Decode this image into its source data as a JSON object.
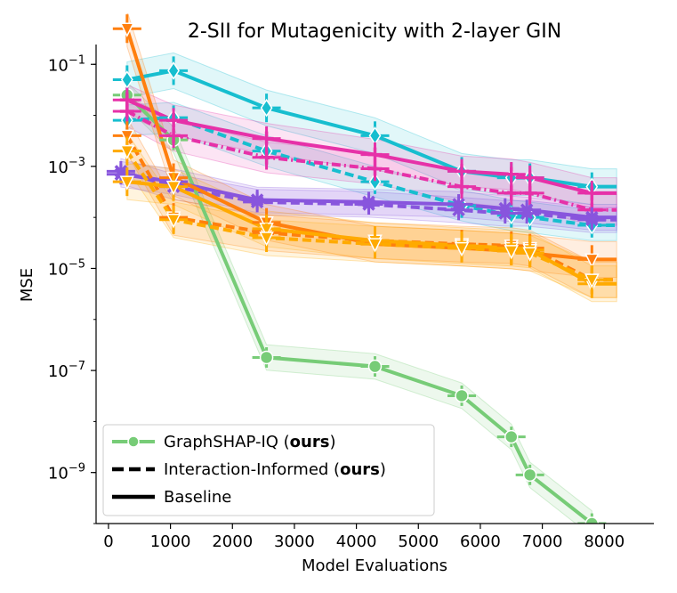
{
  "chart_data": {
    "type": "line",
    "title": "2-SII for Mutagenicity with 2-layer GIN",
    "xlabel": "Model Evaluations",
    "ylabel": "MSE",
    "yscale": "log",
    "xlim": [
      -200,
      8800
    ],
    "ylim": [
      1e-10,
      0.2
    ],
    "xticks": [
      0,
      1000,
      2000,
      3000,
      4000,
      5000,
      6000,
      7000,
      8000
    ],
    "xtick_labels": [
      "0",
      "1000",
      "2000",
      "3000",
      "4000",
      "5000",
      "6000",
      "7000",
      "8000"
    ],
    "yticks": [
      1e-09,
      1e-07,
      1e-05,
      0.001,
      0.1
    ],
    "ytick_labels": [
      {
        "base": "10",
        "exp": "−9"
      },
      {
        "base": "10",
        "exp": "−7"
      },
      {
        "base": "10",
        "exp": "−5"
      },
      {
        "base": "10",
        "exp": "−3"
      },
      {
        "base": "10",
        "exp": "−1"
      }
    ],
    "legend": {
      "position": "lower-left",
      "entries": [
        {
          "label": "GraphSHAP-IQ (",
          "bold": "ours",
          "tail": ")",
          "style": "green-marker"
        },
        {
          "label": "Interaction-Informed (",
          "bold": "ours",
          "tail": ")",
          "style": "dashed"
        },
        {
          "label": "Baseline",
          "bold": "",
          "tail": "",
          "style": "solid"
        }
      ]
    },
    "series": [
      {
        "name": "GraphSHAP-IQ",
        "color": "#77cc77",
        "dash": "solid",
        "marker": "circle",
        "band": 0.25,
        "x": [
          300,
          1050,
          2550,
          4300,
          5700,
          6500,
          6800,
          7800
        ],
        "y": [
          0.025,
          0.0033,
          1.8e-07,
          1.2e-07,
          3.2e-08,
          5e-09,
          9e-10,
          1e-10
        ]
      },
      {
        "name": "Baseline (cyan)",
        "color": "#17becf",
        "dash": "solid",
        "marker": "diamond",
        "band": 0.35,
        "x": [
          300,
          1050,
          2550,
          4300,
          5700,
          6500,
          6800,
          7800,
          8200
        ],
        "y": [
          0.05,
          0.075,
          0.014,
          0.004,
          0.0008,
          0.0006,
          0.0006,
          0.0004,
          0.0004
        ]
      },
      {
        "name": "Interaction-Informed (cyan)",
        "color": "#17becf",
        "dash": "dashed",
        "marker": "diamond",
        "band": 0.3,
        "x": [
          300,
          1050,
          2550,
          4300,
          5700,
          6500,
          6800,
          7800,
          8200
        ],
        "y": [
          0.008,
          0.009,
          0.002,
          0.0005,
          0.00017,
          0.00011,
          0.0001,
          7e-05,
          7e-05
        ]
      },
      {
        "name": "Baseline (magenta)",
        "color": "#e631a8",
        "dash": "solid",
        "marker": "plus",
        "band": 0.3,
        "x": [
          300,
          1050,
          2550,
          4300,
          5700,
          6500,
          6800,
          7800,
          8200
        ],
        "y": [
          0.02,
          0.008,
          0.0035,
          0.0017,
          0.0008,
          0.0007,
          0.0006,
          0.0003,
          0.0003
        ]
      },
      {
        "name": "Interaction-Informed (magenta)",
        "color": "#e631a8",
        "dash": "dashdot",
        "marker": "plus",
        "band": 0.3,
        "x": [
          300,
          1050,
          2550,
          4300,
          5700,
          6500,
          6800,
          7800,
          8200
        ],
        "y": [
          0.012,
          0.004,
          0.0015,
          0.0009,
          0.0004,
          0.0003,
          0.0003,
          0.00014,
          0.00014
        ]
      },
      {
        "name": "Baseline (purple)",
        "color": "#8855dd",
        "dash": "solid",
        "marker": "x",
        "band": 0.25,
        "x": [
          200,
          1050,
          2400,
          4200,
          5650,
          6400,
          6750,
          7800,
          8200
        ],
        "y": [
          0.0007,
          0.0005,
          0.00022,
          0.0002,
          0.00018,
          0.00015,
          0.00014,
          0.0001,
          0.0001
        ]
      },
      {
        "name": "Interaction-Informed (purple)",
        "color": "#8855dd",
        "dash": "dashed",
        "marker": "x",
        "band": 0.25,
        "x": [
          200,
          1050,
          2400,
          4200,
          5650,
          6400,
          6750,
          7800,
          8200
        ],
        "y": [
          0.0008,
          0.0004,
          0.0002,
          0.00018,
          0.00014,
          0.00012,
          0.00012,
          9e-05,
          9e-05
        ]
      },
      {
        "name": "Baseline (orange)",
        "color": "#ff7f0e",
        "dash": "solid",
        "marker": "triangle",
        "band": 0.35,
        "x": [
          300,
          1050,
          2550,
          4300,
          5700,
          6500,
          6800,
          7800,
          8200
        ],
        "y": [
          0.5,
          0.0006,
          8e-05,
          3e-05,
          2.5e-05,
          2.2e-05,
          2e-05,
          1.5e-05,
          1.5e-05
        ]
      },
      {
        "name": "Interaction-Informed (orange)",
        "color": "#ff7f0e",
        "dash": "dashed",
        "marker": "triangle",
        "band": 0.35,
        "x": [
          300,
          1050,
          2550,
          4300,
          5700,
          6500,
          6800,
          7800,
          8200
        ],
        "y": [
          0.004,
          0.0001,
          5e-05,
          3.5e-05,
          3e-05,
          2.8e-05,
          2.5e-05,
          6e-06,
          6e-06
        ]
      },
      {
        "name": "Baseline (amber)",
        "color": "#ffaa00",
        "dash": "solid",
        "marker": "triangle",
        "band": 0.35,
        "x": [
          300,
          1050,
          2550,
          4300,
          5700,
          6500,
          6800,
          7800,
          8200
        ],
        "y": [
          0.0005,
          0.0004,
          6e-05,
          3.5e-05,
          2.8e-05,
          2.5e-05,
          2.3e-05,
          5e-06,
          5e-06
        ]
      },
      {
        "name": "Interaction-Informed (amber)",
        "color": "#ffaa00",
        "dash": "dashed",
        "marker": "triangle",
        "band": 0.35,
        "x": [
          300,
          1050,
          2550,
          4300,
          5700,
          6500,
          6800,
          7800,
          8200
        ],
        "y": [
          0.002,
          9e-05,
          4e-05,
          3e-05,
          2.5e-05,
          2.2e-05,
          2e-05,
          6e-06,
          6e-06
        ]
      }
    ]
  }
}
